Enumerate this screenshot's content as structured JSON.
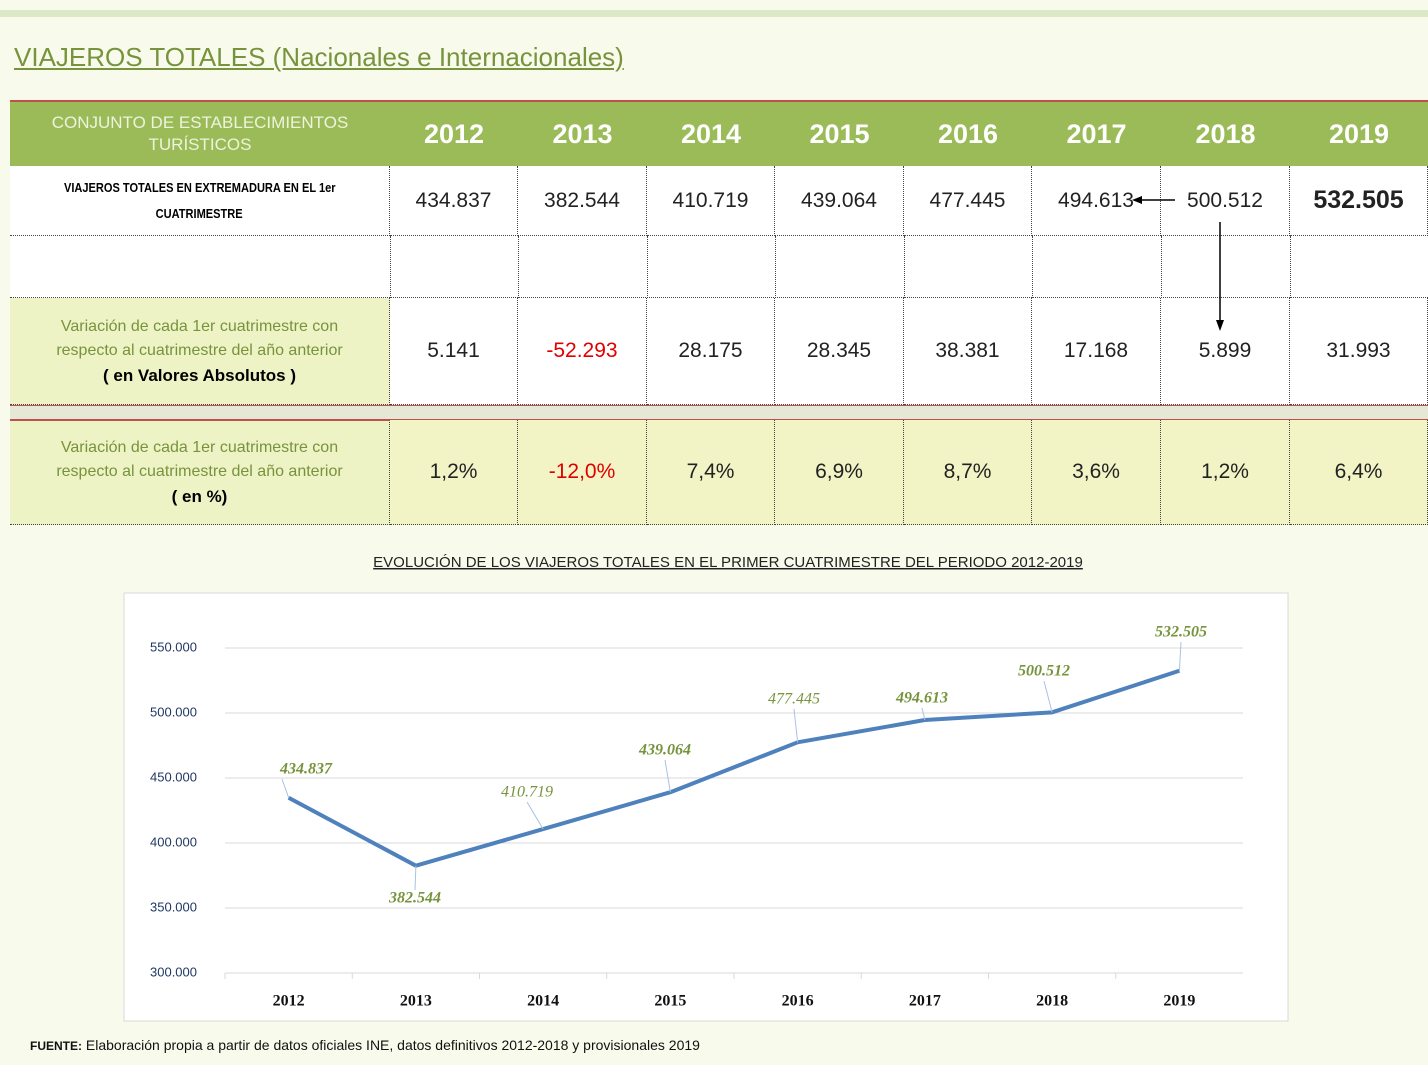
{
  "title": "VIAJEROS TOTALES (Nacionales e Internacionales)",
  "table": {
    "header": "CONJUNTO DE ESTABLECIMIENTOS TURÍSTICOS",
    "years": [
      "2012",
      "2013",
      "2014",
      "2015",
      "2016",
      "2017",
      "2018",
      "2019"
    ],
    "rows": [
      {
        "label": [
          "VIAJEROS TOTALES  EN EXTREMADURA EN EL 1er",
          "CUATRIMESTRE"
        ],
        "cells": [
          "434.837",
          "382.544",
          "410.719",
          "439.064",
          "477.445",
          "494.613",
          "500.512",
          "532.505"
        ]
      },
      {
        "label": [
          "Variación de cada 1er cuatrimestre con",
          "respecto al cuatrimestre del año anterior",
          "( en Valores  Absolutos )"
        ],
        "cells": [
          "5.141",
          "-52.293",
          "28.175",
          "28.345",
          "38.381",
          "17.168",
          "5.899",
          "31.993"
        ]
      },
      {
        "label": [
          "Variación de cada 1er cuatrimestre con",
          "respecto al cuatrimestre del año anterior",
          "( en %)"
        ],
        "cells": [
          "1,2%",
          "-12,0%",
          "7,4%",
          "6,9%",
          "8,7%",
          "3,6%",
          "1,2%",
          "6,4%"
        ]
      }
    ]
  },
  "chart_data": {
    "type": "line",
    "title": "EVOLUCIÓN DE LOS VIAJEROS TOTALES  EN EL PRIMER CUATRIMESTRE DEL PERIODO 2012-2019",
    "categories": [
      "2012",
      "2013",
      "2014",
      "2015",
      "2016",
      "2017",
      "2018",
      "2019"
    ],
    "values": [
      434837,
      382544,
      410719,
      439064,
      477445,
      494613,
      500512,
      532505
    ],
    "value_labels": [
      "434.837",
      "382.544",
      "410.719",
      "439.064",
      "477.445",
      "494.613",
      "500.512",
      "532.505"
    ],
    "color": "#4f81bd",
    "ylim": [
      300000,
      550000
    ],
    "yticks": [
      {
        "value": 300000,
        "label": "300.000"
      },
      {
        "value": 350000,
        "label": "350.000"
      },
      {
        "value": 400000,
        "label": "400.000"
      },
      {
        "value": 450000,
        "label": "450.000"
      },
      {
        "value": 500000,
        "label": "500.000"
      },
      {
        "value": 550000,
        "label": "550.000"
      }
    ],
    "grid": true
  },
  "footer": {
    "label": "FUENTE:",
    "text": "Elaboración propia a partir de datos oficiales INE, datos definitivos 2012-2018 y provisionales 2019"
  }
}
